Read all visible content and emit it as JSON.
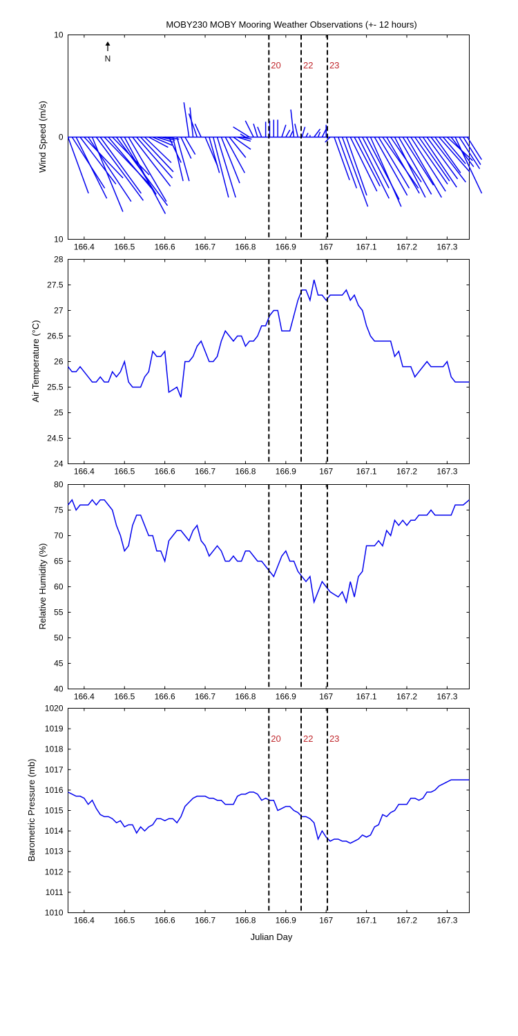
{
  "title": "MOBY230 MOBY Mooring Weather Observations (+- 12 hours)",
  "colors": {
    "series": "#0000ee",
    "event_label": "#c0282d",
    "axes": "#000000"
  },
  "chart_data": [
    {
      "type": "quiver",
      "ylabel": "Wind Speed (m/s)",
      "xlim": [
        166.36,
        167.355
      ],
      "ylim": [
        -10,
        10
      ],
      "ytick_labels": [
        "10",
        "0",
        "10"
      ],
      "ytick_values": [
        10,
        0,
        -10
      ],
      "xticks": [
        166.4,
        166.5,
        166.6,
        166.7,
        166.8,
        166.9,
        167,
        167.1,
        167.2,
        167.3
      ],
      "north_label": "N",
      "event_labels": [
        "20",
        "22",
        "23"
      ],
      "vectors": [
        {
          "x": 166.36,
          "u": 2.0,
          "v": -5.5
        },
        {
          "x": 166.37,
          "u": 3.2,
          "v": -5.0
        },
        {
          "x": 166.38,
          "u": 3.0,
          "v": -6.0
        },
        {
          "x": 166.39,
          "u": 3.5,
          "v": -4.6
        },
        {
          "x": 166.4,
          "u": 3.8,
          "v": -4.0
        },
        {
          "x": 166.41,
          "u": 4.2,
          "v": -6.3
        },
        {
          "x": 166.42,
          "u": 3.0,
          "v": -7.3
        },
        {
          "x": 166.43,
          "u": 4.6,
          "v": -6.2
        },
        {
          "x": 166.44,
          "u": 4.0,
          "v": -5.5
        },
        {
          "x": 166.45,
          "u": 4.4,
          "v": -4.6
        },
        {
          "x": 166.46,
          "u": 4.3,
          "v": -5.1
        },
        {
          "x": 166.47,
          "u": 3.6,
          "v": -3.7
        },
        {
          "x": 166.48,
          "u": 5.0,
          "v": -6.7
        },
        {
          "x": 166.49,
          "u": 3.5,
          "v": -5.6
        },
        {
          "x": 166.5,
          "u": 4.0,
          "v": -7.5
        },
        {
          "x": 166.51,
          "u": 3.7,
          "v": -6.3
        },
        {
          "x": 166.52,
          "u": 3.7,
          "v": -4.8
        },
        {
          "x": 166.53,
          "u": 3.5,
          "v": -4.0
        },
        {
          "x": 166.54,
          "u": 3.2,
          "v": -3.4
        },
        {
          "x": 166.55,
          "u": 2.6,
          "v": -2.5
        },
        {
          "x": 166.56,
          "u": 1.9,
          "v": -1.0
        },
        {
          "x": 166.57,
          "u": 1.9,
          "v": -0.8
        },
        {
          "x": 166.58,
          "u": 1.6,
          "v": -0.5
        },
        {
          "x": 166.59,
          "u": 1.4,
          "v": -0.3
        },
        {
          "x": 166.6,
          "u": 1.4,
          "v": -0.2
        },
        {
          "x": 166.61,
          "u": 1.2,
          "v": -2.5
        },
        {
          "x": 166.62,
          "u": 1.0,
          "v": -4.3
        },
        {
          "x": 166.63,
          "u": 1.2,
          "v": -4.3
        },
        {
          "x": 166.64,
          "u": 1.0,
          "v": -2.1
        },
        {
          "x": 166.65,
          "u": 1.0,
          "v": -1.7
        },
        {
          "x": 166.66,
          "u": -0.5,
          "v": 3.4
        },
        {
          "x": 166.67,
          "u": -0.3,
          "v": 2.9
        },
        {
          "x": 166.68,
          "u": -0.8,
          "v": 2.3
        },
        {
          "x": 166.69,
          "u": -0.6,
          "v": 1.3
        },
        {
          "x": 166.7,
          "u": 1.2,
          "v": -2.8
        },
        {
          "x": 166.71,
          "u": 1.0,
          "v": -3.5
        },
        {
          "x": 166.72,
          "u": 1.5,
          "v": -5.9
        },
        {
          "x": 166.73,
          "u": 1.8,
          "v": -5.9
        },
        {
          "x": 166.74,
          "u": 1.8,
          "v": -4.5
        },
        {
          "x": 166.75,
          "u": 1.9,
          "v": -3.5
        },
        {
          "x": 166.76,
          "u": 1.6,
          "v": -2.0
        },
        {
          "x": 166.77,
          "u": 1.7,
          "v": -1.2
        },
        {
          "x": 166.78,
          "u": 1.3,
          "v": -0.4
        },
        {
          "x": 166.79,
          "u": 1.0,
          "v": -0.2
        },
        {
          "x": 166.8,
          "u": -0.5,
          "v": 0.3
        },
        {
          "x": 166.81,
          "u": -1.6,
          "v": 1.0
        },
        {
          "x": 166.82,
          "u": -0.8,
          "v": 1.6
        },
        {
          "x": 166.83,
          "u": -0.4,
          "v": 1.3
        },
        {
          "x": 166.84,
          "u": -0.4,
          "v": 1.0
        },
        {
          "x": 166.85,
          "u": 0.0,
          "v": 1.5
        },
        {
          "x": 166.86,
          "u": 0.0,
          "v": 1.6
        },
        {
          "x": 166.87,
          "u": 0.0,
          "v": 1.7
        },
        {
          "x": 166.88,
          "u": 0.0,
          "v": 1.7
        },
        {
          "x": 166.89,
          "u": 0.4,
          "v": 1.2
        },
        {
          "x": 166.9,
          "u": 0.4,
          "v": 0.7
        },
        {
          "x": 166.91,
          "u": 0.3,
          "v": 0.6
        },
        {
          "x": 166.92,
          "u": -0.3,
          "v": 2.7
        },
        {
          "x": 166.93,
          "u": -0.3,
          "v": 1.3
        },
        {
          "x": 166.94,
          "u": 0.3,
          "v": 1.0
        },
        {
          "x": 166.95,
          "u": 0.2,
          "v": 0.4
        },
        {
          "x": 166.96,
          "u": 0.0,
          "v": 0.2
        },
        {
          "x": 166.97,
          "u": 0.6,
          "v": 0.8
        },
        {
          "x": 166.98,
          "u": 0.2,
          "v": 0.5
        },
        {
          "x": 166.99,
          "u": 0.4,
          "v": 0.8
        },
        {
          "x": 167.0,
          "u": 0.0,
          "v": 1.2
        },
        {
          "x": 167.01,
          "u": -0.5,
          "v": -0.5
        },
        {
          "x": 167.02,
          "u": 1.5,
          "v": -4.2
        },
        {
          "x": 167.03,
          "u": 1.8,
          "v": -5.0
        },
        {
          "x": 167.04,
          "u": 2.5,
          "v": -6.8
        },
        {
          "x": 167.05,
          "u": 2.0,
          "v": -5.7
        },
        {
          "x": 167.06,
          "u": 2.6,
          "v": -5.3
        },
        {
          "x": 167.07,
          "u": 2.5,
          "v": -4.8
        },
        {
          "x": 167.08,
          "u": 3.0,
          "v": -6.0
        },
        {
          "x": 167.09,
          "u": 2.6,
          "v": -5.0
        },
        {
          "x": 167.1,
          "u": 3.2,
          "v": -6.1
        },
        {
          "x": 167.11,
          "u": 3.0,
          "v": -6.8
        },
        {
          "x": 167.12,
          "u": 3.2,
          "v": -5.7
        },
        {
          "x": 167.13,
          "u": 3.0,
          "v": -5.0
        },
        {
          "x": 167.14,
          "u": 3.5,
          "v": -5.0
        },
        {
          "x": 167.15,
          "u": 3.2,
          "v": -5.5
        },
        {
          "x": 167.16,
          "u": 3.0,
          "v": -4.4
        },
        {
          "x": 167.17,
          "u": 3.0,
          "v": -5.9
        },
        {
          "x": 167.18,
          "u": 3.2,
          "v": -5.6
        },
        {
          "x": 167.19,
          "u": 3.0,
          "v": -4.7
        },
        {
          "x": 167.2,
          "u": 3.4,
          "v": -5.9
        },
        {
          "x": 167.21,
          "u": 3.4,
          "v": -5.3
        },
        {
          "x": 167.22,
          "u": 3.2,
          "v": -4.6
        },
        {
          "x": 167.23,
          "u": 3.0,
          "v": -4.3
        },
        {
          "x": 167.24,
          "u": 3.3,
          "v": -4.9
        },
        {
          "x": 167.25,
          "u": 3.0,
          "v": -4.1
        },
        {
          "x": 167.26,
          "u": 3.4,
          "v": -4.4
        },
        {
          "x": 167.27,
          "u": 2.5,
          "v": -3.5
        },
        {
          "x": 167.28,
          "u": 3.0,
          "v": -3.4
        },
        {
          "x": 167.29,
          "u": 2.2,
          "v": -2.6
        },
        {
          "x": 167.3,
          "u": 2.5,
          "v": -2.3
        },
        {
          "x": 167.31,
          "u": 2.2,
          "v": -2.9
        },
        {
          "x": 167.32,
          "u": 2.6,
          "v": -5.5
        },
        {
          "x": 167.33,
          "u": 2.0,
          "v": -3.1
        },
        {
          "x": 167.34,
          "u": 1.7,
          "v": -2.7
        },
        {
          "x": 167.35,
          "u": 1.4,
          "v": -2.2
        }
      ]
    },
    {
      "type": "line",
      "ylabel": "Air Temperature (°C)",
      "xlim": [
        166.36,
        167.355
      ],
      "ylim": [
        24,
        28
      ],
      "yticks": [
        24,
        24.5,
        25,
        25.5,
        26,
        26.5,
        27,
        27.5,
        28
      ],
      "xticks": [
        166.4,
        166.5,
        166.6,
        166.7,
        166.8,
        166.9,
        167,
        167.1,
        167.2,
        167.3
      ],
      "x": [
        166.36,
        166.37,
        166.38,
        166.39,
        166.4,
        166.41,
        166.42,
        166.43,
        166.44,
        166.45,
        166.46,
        166.47,
        166.48,
        166.49,
        166.5,
        166.51,
        166.52,
        166.53,
        166.54,
        166.55,
        166.56,
        166.57,
        166.58,
        166.59,
        166.6,
        166.61,
        166.62,
        166.63,
        166.64,
        166.65,
        166.66,
        166.67,
        166.68,
        166.69,
        166.7,
        166.71,
        166.72,
        166.73,
        166.74,
        166.75,
        166.76,
        166.77,
        166.78,
        166.79,
        166.8,
        166.81,
        166.82,
        166.83,
        166.84,
        166.85,
        166.86,
        166.87,
        166.88,
        166.89,
        166.9,
        166.91,
        166.92,
        166.93,
        166.94,
        166.95,
        166.96,
        166.97,
        166.98,
        166.99,
        167.0,
        167.01,
        167.02,
        167.03,
        167.04,
        167.05,
        167.06,
        167.07,
        167.08,
        167.09,
        167.1,
        167.11,
        167.12,
        167.13,
        167.14,
        167.15,
        167.16,
        167.17,
        167.18,
        167.19,
        167.2,
        167.21,
        167.22,
        167.23,
        167.24,
        167.25,
        167.26,
        167.27,
        167.28,
        167.29,
        167.3,
        167.31,
        167.32,
        167.33,
        167.34,
        167.355
      ],
      "y": [
        25.9,
        25.8,
        25.8,
        25.9,
        25.8,
        25.7,
        25.6,
        25.6,
        25.7,
        25.6,
        25.6,
        25.8,
        25.7,
        25.8,
        26.0,
        25.6,
        25.5,
        25.5,
        25.5,
        25.7,
        25.8,
        26.2,
        26.1,
        26.1,
        26.2,
        25.4,
        25.45,
        25.5,
        25.3,
        26.0,
        26.0,
        26.1,
        26.3,
        26.4,
        26.2,
        26.0,
        26.0,
        26.1,
        26.4,
        26.6,
        26.5,
        26.4,
        26.5,
        26.5,
        26.3,
        26.4,
        26.4,
        26.5,
        26.7,
        26.7,
        26.9,
        27.0,
        27.0,
        26.6,
        26.6,
        26.6,
        26.9,
        27.2,
        27.4,
        27.4,
        27.2,
        27.6,
        27.3,
        27.3,
        27.2,
        27.3,
        27.3,
        27.3,
        27.3,
        27.4,
        27.2,
        27.3,
        27.1,
        27.0,
        26.7,
        26.5,
        26.4,
        26.4,
        26.4,
        26.4,
        26.4,
        26.1,
        26.2,
        25.9,
        25.9,
        25.9,
        25.7,
        25.8,
        25.9,
        26.0,
        25.9,
        25.9,
        25.9,
        25.9,
        26.0,
        25.7,
        25.6,
        25.6,
        25.6,
        25.6
      ]
    },
    {
      "type": "line",
      "ylabel": "Relative Humidity (%)",
      "xlim": [
        166.36,
        167.355
      ],
      "ylim": [
        40,
        80
      ],
      "yticks": [
        40,
        45,
        50,
        55,
        60,
        65,
        70,
        75,
        80
      ],
      "xticks": [
        166.4,
        166.5,
        166.6,
        166.7,
        166.8,
        166.9,
        167,
        167.1,
        167.2,
        167.3
      ],
      "x": [
        166.36,
        166.37,
        166.38,
        166.39,
        166.4,
        166.41,
        166.42,
        166.43,
        166.44,
        166.45,
        166.46,
        166.47,
        166.48,
        166.49,
        166.5,
        166.51,
        166.52,
        166.53,
        166.54,
        166.55,
        166.56,
        166.57,
        166.58,
        166.59,
        166.6,
        166.61,
        166.62,
        166.63,
        166.64,
        166.65,
        166.66,
        166.67,
        166.68,
        166.69,
        166.7,
        166.71,
        166.72,
        166.73,
        166.74,
        166.75,
        166.76,
        166.77,
        166.78,
        166.79,
        166.8,
        166.81,
        166.82,
        166.83,
        166.84,
        166.85,
        166.86,
        166.87,
        166.88,
        166.89,
        166.9,
        166.91,
        166.92,
        166.93,
        166.94,
        166.95,
        166.96,
        166.97,
        166.98,
        166.99,
        167.0,
        167.01,
        167.02,
        167.03,
        167.04,
        167.05,
        167.06,
        167.07,
        167.08,
        167.09,
        167.1,
        167.11,
        167.12,
        167.13,
        167.14,
        167.15,
        167.16,
        167.17,
        167.18,
        167.19,
        167.2,
        167.21,
        167.22,
        167.23,
        167.24,
        167.25,
        167.26,
        167.27,
        167.28,
        167.29,
        167.3,
        167.31,
        167.32,
        167.33,
        167.34,
        167.355
      ],
      "y": [
        76,
        77,
        75,
        76,
        76,
        76,
        77,
        76,
        77,
        77,
        76,
        75,
        72,
        70,
        67,
        68,
        72,
        74,
        74,
        72,
        70,
        70,
        67,
        67,
        65,
        69,
        70,
        71,
        71,
        70,
        69,
        71,
        72,
        69,
        68,
        66,
        67,
        68,
        67,
        65,
        65,
        66,
        65,
        65,
        67,
        67,
        66,
        65,
        65,
        64,
        63,
        62,
        64,
        66,
        67,
        65,
        65,
        63,
        62,
        61,
        62,
        57,
        59,
        61,
        60,
        59,
        58.5,
        58,
        59,
        57,
        61,
        58,
        62,
        63,
        68,
        68,
        68,
        69,
        68,
        71,
        70,
        73,
        72,
        73,
        72,
        73,
        73,
        74,
        74,
        74,
        75,
        74,
        74,
        74,
        74,
        74,
        76,
        76,
        76,
        77
      ]
    },
    {
      "type": "line",
      "ylabel": "Barometric Pressure (mb)",
      "xlabel": "Julian Day",
      "xlim": [
        166.36,
        167.355
      ],
      "ylim": [
        1010,
        1020
      ],
      "yticks": [
        1010,
        1011,
        1012,
        1013,
        1014,
        1015,
        1016,
        1017,
        1018,
        1019,
        1020
      ],
      "xticks": [
        166.4,
        166.5,
        166.6,
        166.7,
        166.8,
        166.9,
        167,
        167.1,
        167.2,
        167.3
      ],
      "event_labels": [
        "20",
        "22",
        "23"
      ],
      "x": [
        166.36,
        166.37,
        166.38,
        166.39,
        166.4,
        166.41,
        166.42,
        166.43,
        166.44,
        166.45,
        166.46,
        166.47,
        166.48,
        166.49,
        166.5,
        166.51,
        166.52,
        166.53,
        166.54,
        166.55,
        166.56,
        166.57,
        166.58,
        166.59,
        166.6,
        166.61,
        166.62,
        166.63,
        166.64,
        166.65,
        166.66,
        166.67,
        166.68,
        166.69,
        166.7,
        166.71,
        166.72,
        166.73,
        166.74,
        166.75,
        166.76,
        166.77,
        166.78,
        166.79,
        166.8,
        166.81,
        166.82,
        166.83,
        166.84,
        166.85,
        166.86,
        166.87,
        166.88,
        166.89,
        166.9,
        166.91,
        166.92,
        166.93,
        166.94,
        166.95,
        166.96,
        166.97,
        166.98,
        166.99,
        167.0,
        167.01,
        167.02,
        167.03,
        167.04,
        167.05,
        167.06,
        167.07,
        167.08,
        167.09,
        167.1,
        167.11,
        167.12,
        167.13,
        167.14,
        167.15,
        167.16,
        167.17,
        167.18,
        167.19,
        167.2,
        167.21,
        167.22,
        167.23,
        167.24,
        167.25,
        167.26,
        167.27,
        167.28,
        167.29,
        167.3,
        167.31,
        167.32,
        167.33,
        167.34,
        167.355
      ],
      "y": [
        1015.9,
        1015.8,
        1015.7,
        1015.7,
        1015.6,
        1015.3,
        1015.5,
        1015.1,
        1014.8,
        1014.7,
        1014.7,
        1014.6,
        1014.4,
        1014.5,
        1014.2,
        1014.3,
        1014.3,
        1013.9,
        1014.2,
        1014.0,
        1014.2,
        1014.3,
        1014.6,
        1014.6,
        1014.5,
        1014.6,
        1014.6,
        1014.4,
        1014.7,
        1015.2,
        1015.4,
        1015.6,
        1015.7,
        1015.7,
        1015.7,
        1015.6,
        1015.6,
        1015.5,
        1015.5,
        1015.3,
        1015.3,
        1015.3,
        1015.7,
        1015.8,
        1015.8,
        1015.9,
        1015.9,
        1015.8,
        1015.5,
        1015.6,
        1015.5,
        1015.5,
        1015.0,
        1015.1,
        1015.2,
        1015.2,
        1015.0,
        1014.9,
        1014.7,
        1014.7,
        1014.6,
        1014.4,
        1013.6,
        1014.0,
        1013.7,
        1013.5,
        1013.6,
        1013.6,
        1013.5,
        1013.5,
        1013.4,
        1013.5,
        1013.6,
        1013.8,
        1013.7,
        1013.8,
        1014.2,
        1014.3,
        1014.8,
        1014.7,
        1014.9,
        1015.0,
        1015.3,
        1015.3,
        1015.3,
        1015.6,
        1015.6,
        1015.5,
        1015.6,
        1015.9,
        1015.9,
        1016.0,
        1016.2,
        1016.3,
        1016.4,
        1016.5,
        1016.5,
        1016.5,
        1016.5,
        1016.5
      ]
    }
  ],
  "event_lines": [
    166.858,
    166.938,
    167.003
  ]
}
